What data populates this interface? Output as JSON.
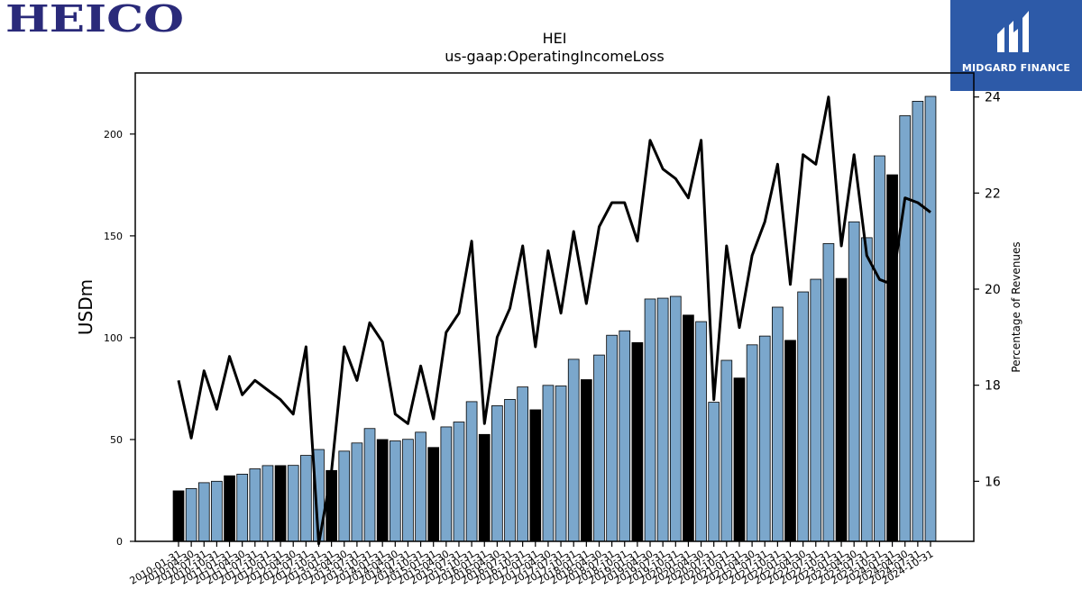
{
  "brand": {
    "left_logo": "HEICO",
    "right_logo": "MIDGARD FINANCE",
    "right_logo_color": "#2d5aa8",
    "left_logo_color": "#2a2a7a"
  },
  "chart_data": {
    "type": "bar",
    "title": "HEI",
    "subtitle": "us-gaap:OperatingIncomeLoss",
    "ylabel": "USDm",
    "y2label": "Percentage of Revenues",
    "ylim": [
      0,
      230
    ],
    "y2lim": [
      14.75,
      24.5
    ],
    "yticks": [
      0,
      50,
      100,
      150,
      200
    ],
    "y2ticks": [
      16,
      18,
      20,
      22,
      24
    ],
    "bar_color": "#7ba7cc",
    "highlight_color": "#000000",
    "line_color": "#000000",
    "x": [
      "2010-01-31",
      "2010-04-30",
      "2010-07-31",
      "2010-10-31",
      "2011-01-31",
      "2011-04-30",
      "2011-07-31",
      "2011-10-31",
      "2012-01-31",
      "2012-04-30",
      "2012-07-31",
      "2012-10-31",
      "2013-01-31",
      "2013-04-30",
      "2013-07-31",
      "2013-10-31",
      "2014-01-31",
      "2014-04-30",
      "2014-07-31",
      "2014-10-31",
      "2015-01-31",
      "2015-04-30",
      "2015-07-31",
      "2015-10-31",
      "2016-01-31",
      "2016-04-30",
      "2016-07-31",
      "2016-10-31",
      "2017-01-31",
      "2017-04-30",
      "2017-07-31",
      "2017-10-31",
      "2018-01-31",
      "2018-04-30",
      "2018-07-31",
      "2018-10-31",
      "2019-01-31",
      "2019-04-30",
      "2019-07-31",
      "2019-10-31",
      "2020-01-31",
      "2020-04-30",
      "2020-07-31",
      "2020-10-31",
      "2021-01-31",
      "2021-04-30",
      "2021-07-31",
      "2021-10-31",
      "2022-01-31",
      "2022-04-30",
      "2022-07-31",
      "2022-10-31",
      "2023-01-31",
      "2023-04-30",
      "2023-07-31",
      "2023-10-31",
      "2024-01-31",
      "2024-04-30",
      "2024-07-31",
      "2024-10-31"
    ],
    "series": [
      {
        "kind": "bar",
        "values": [
          24.8,
          25.9,
          28.8,
          29.5,
          32.2,
          33.0,
          35.6,
          37.2,
          37.2,
          37.3,
          42.2,
          45.1,
          34.8,
          44.3,
          48.3,
          55.4,
          50.0,
          49.3,
          50.1,
          53.6,
          46.1,
          56.2,
          58.6,
          68.6,
          52.5,
          66.6,
          69.7,
          75.8,
          64.6,
          76.6,
          76.3,
          89.4,
          79.4,
          91.5,
          101.2,
          103.4,
          97.6,
          119.0,
          119.4,
          120.3,
          111.1,
          107.9,
          68.3,
          88.9,
          80.2,
          96.5,
          100.8,
          115.0,
          98.7,
          122.5,
          128.7,
          146.2,
          129.1,
          156.9,
          149.1,
          189.3,
          180.0,
          209.0,
          216.1,
          218.5
        ],
        "highlighted": [
          true,
          false,
          false,
          false,
          true,
          false,
          false,
          false,
          true,
          false,
          false,
          false,
          true,
          false,
          false,
          false,
          true,
          false,
          false,
          false,
          true,
          false,
          false,
          false,
          true,
          false,
          false,
          false,
          true,
          false,
          false,
          false,
          true,
          false,
          false,
          false,
          true,
          false,
          false,
          false,
          true,
          false,
          false,
          false,
          true,
          false,
          false,
          false,
          true,
          false,
          false,
          false,
          true,
          false,
          false,
          false,
          true,
          false,
          false,
          false
        ]
      },
      {
        "kind": "line",
        "axis": "right",
        "values": [
          18.1,
          16.9,
          18.3,
          17.5,
          18.6,
          17.8,
          18.1,
          17.9,
          17.7,
          17.4,
          18.8,
          14.7,
          16.2,
          18.8,
          18.1,
          19.3,
          18.9,
          17.4,
          17.2,
          18.4,
          17.3,
          19.1,
          19.5,
          21.0,
          17.2,
          19.0,
          19.6,
          20.9,
          18.8,
          20.8,
          19.5,
          21.2,
          19.7,
          21.3,
          21.8,
          21.8,
          21.0,
          23.1,
          22.5,
          22.3,
          21.9,
          23.1,
          17.7,
          20.9,
          19.2,
          20.7,
          21.4,
          22.6,
          20.1,
          22.8,
          22.6,
          24.0,
          20.9,
          22.8,
          20.7,
          20.2,
          20.1,
          21.9,
          21.8,
          21.6
        ]
      }
    ]
  }
}
